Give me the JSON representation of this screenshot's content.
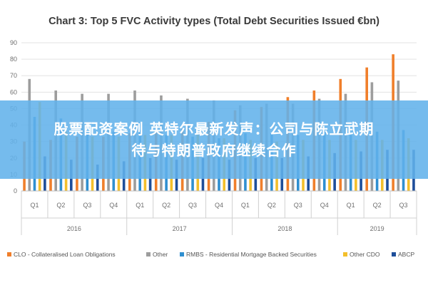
{
  "chart_data": {
    "type": "bar",
    "title": "Chart 3: Top 5 FVC Activity types (Total Debt Securities Issued €bn)",
    "xlabel": "",
    "ylabel": "",
    "ylim": [
      0,
      90
    ],
    "yticks": [
      0,
      10,
      20,
      30,
      40,
      50,
      60,
      70,
      80,
      90
    ],
    "grid": true,
    "legend_position": "bottom",
    "categories": [
      "Q1",
      "Q2",
      "Q3",
      "Q4",
      "Q1",
      "Q2",
      "Q3",
      "Q4",
      "Q1",
      "Q2",
      "Q3",
      "Q4",
      "Q1",
      "Q2",
      "Q3"
    ],
    "years": [
      {
        "label": "2016",
        "span": 4
      },
      {
        "label": "2017",
        "span": 4
      },
      {
        "label": "2018",
        "span": 4
      },
      {
        "label": "2019",
        "span": 3
      }
    ],
    "series": [
      {
        "name": "CLO - Collateralised Loan Obligations",
        "color": "#f07f2b",
        "values": [
          30,
          31,
          33,
          33,
          35,
          36,
          38,
          42,
          49,
          51,
          57,
          61,
          68,
          75,
          83
        ]
      },
      {
        "name": "Other",
        "color": "#9d9d9d",
        "values": [
          68,
          61,
          59,
          59,
          61,
          58,
          56,
          55,
          52,
          53,
          53,
          56,
          59,
          66,
          67
        ]
      },
      {
        "name": "RMBS - Residential Mortgage Backed Securities",
        "color": "#2f8fd0",
        "values": [
          45,
          44,
          37,
          36,
          37,
          34,
          33,
          32,
          35,
          35,
          34,
          36,
          34,
          36,
          37
        ]
      },
      {
        "name": "Other CDO",
        "color": "#f3bf2b",
        "values": [
          54,
          36,
          33,
          33,
          34,
          34,
          34,
          32,
          31,
          30,
          31,
          31,
          31,
          31,
          32
        ]
      },
      {
        "name": "ABCP",
        "color": "#1e4e9a",
        "values": [
          21,
          19,
          16,
          18,
          20,
          19,
          20,
          19,
          20,
          20,
          21,
          23,
          24,
          25,
          25
        ]
      }
    ]
  },
  "banner": {
    "line1": "股票配资案例 英特尔最新发声：公司与陈立武期",
    "line2": "待与特朗普政府继续合作"
  }
}
